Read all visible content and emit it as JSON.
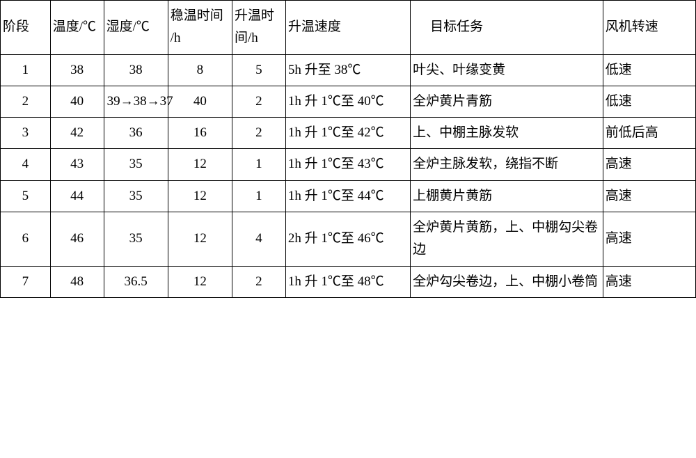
{
  "table": {
    "headers": {
      "stage": "阶段",
      "temp": "温度/℃",
      "humid": "湿度/℃",
      "stable_time": "稳温时间 /h",
      "heat_time": "升温时间/h",
      "heat_speed": "升温速度",
      "target": "目标任务",
      "fan_speed": "风机转速"
    },
    "rows": [
      {
        "stage": "1",
        "temp": "38",
        "humid": "38",
        "stable_time": "8",
        "heat_time": "5",
        "heat_speed": "5h 升至 38℃",
        "target": "叶尖、叶缘变黄",
        "fan_speed": "低速"
      },
      {
        "stage": "2",
        "temp": "40",
        "humid": "39→38→37",
        "stable_time": "40",
        "heat_time": "2",
        "heat_speed": "1h 升 1℃至 40℃",
        "target": "全炉黄片青筋",
        "fan_speed": "低速"
      },
      {
        "stage": "3",
        "temp": "42",
        "humid": "36",
        "stable_time": "16",
        "heat_time": "2",
        "heat_speed": "1h 升 1℃至 42℃",
        "target": "上、中棚主脉发软",
        "fan_speed": "前低后高"
      },
      {
        "stage": "4",
        "temp": "43",
        "humid": "35",
        "stable_time": "12",
        "heat_time": "1",
        "heat_speed": "1h 升 1℃至 43℃",
        "target": "全炉主脉发软，绕指不断",
        "fan_speed": "高速"
      },
      {
        "stage": "5",
        "temp": "44",
        "humid": "35",
        "stable_time": "12",
        "heat_time": "1",
        "heat_speed": "1h 升 1℃至 44℃",
        "target": "上棚黄片黄筋",
        "fan_speed": "高速"
      },
      {
        "stage": "6",
        "temp": "46",
        "humid": "35",
        "stable_time": "12",
        "heat_time": "4",
        "heat_speed": "2h 升 1℃至 46℃",
        "target": "全炉黄片黄筋，上、中棚勾尖卷边",
        "fan_speed": "高速"
      },
      {
        "stage": "7",
        "temp": "48",
        "humid": "36.5",
        "stable_time": "12",
        "heat_time": "2",
        "heat_speed": "1h 升 1℃至 48℃",
        "target": "全炉勾尖卷边，上、中棚小卷筒",
        "fan_speed": "高速"
      }
    ],
    "styling": {
      "border_color": "#000000",
      "border_width": 1.5,
      "background_color": "#ffffff",
      "text_color": "#000000",
      "font_family": "SimSun",
      "font_size": 19,
      "line_height": 1.7,
      "column_widths": {
        "stage": 70,
        "temp": 75,
        "humid": 90,
        "stable_time": 90,
        "heat_time": 75,
        "heat_speed": 175,
        "target": 270,
        "fan_speed": 130
      },
      "alignments": {
        "stage": "center",
        "temp": "center",
        "humid": "center",
        "stable_time": "center",
        "heat_time": "center",
        "heat_speed": "left",
        "target": "left",
        "fan_speed": "left"
      }
    }
  }
}
